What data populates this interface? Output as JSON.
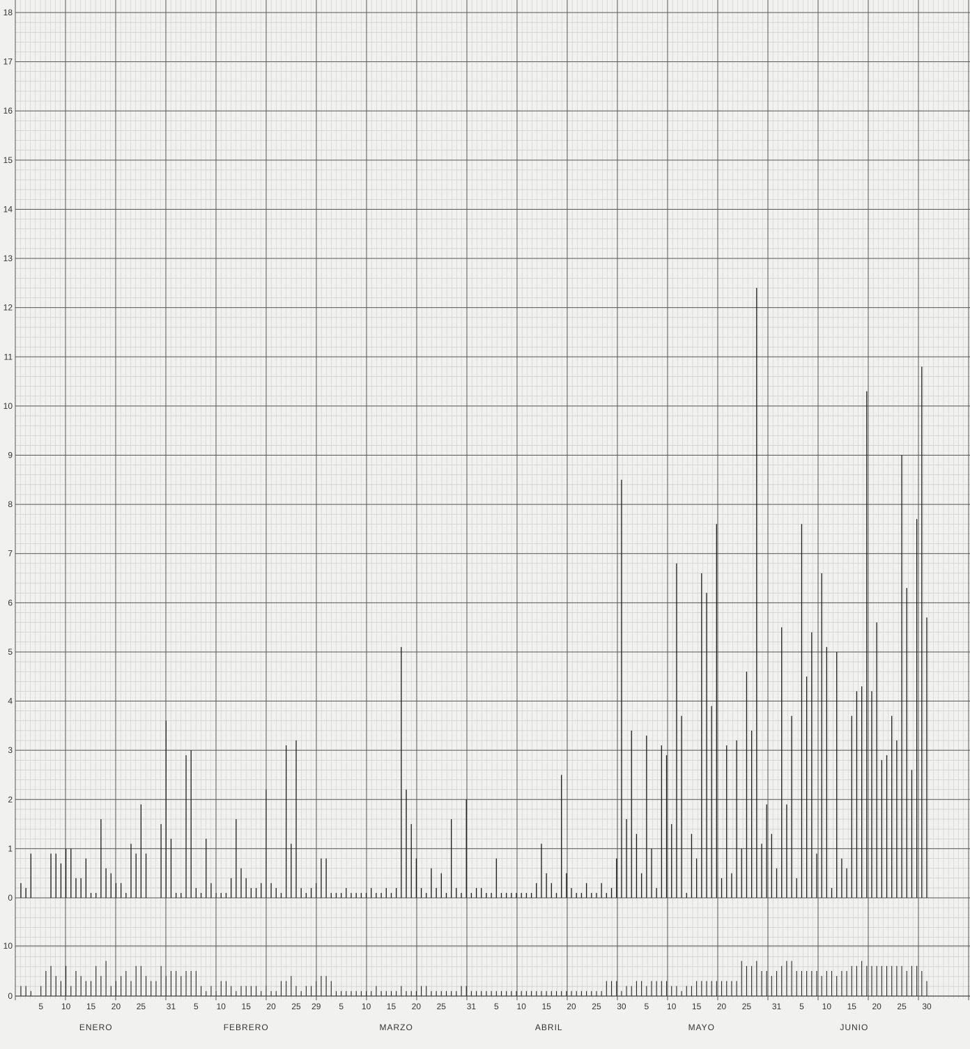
{
  "chart_data": {
    "type": "bar",
    "title": "",
    "xlabel": "",
    "ylabel": "",
    "grid": true,
    "upper_panel": {
      "ylim": [
        -0.2,
        18
      ],
      "ytick_labels": [
        "0",
        "1",
        "2",
        "3",
        "4",
        "5",
        "6",
        "7",
        "8",
        "9",
        "10",
        "11",
        "12",
        "13",
        "14",
        "15",
        "16",
        "17",
        "18"
      ]
    },
    "lower_panel": {
      "ylim": [
        0,
        10
      ],
      "ytick_labels": [
        "0",
        "10"
      ]
    },
    "months": [
      "ENERO",
      "FEBRERO",
      "MARZO",
      "ABRIL",
      "MAYO",
      "JUNIO"
    ],
    "month_days": [
      31,
      29,
      31,
      30,
      31,
      30
    ],
    "day_ticks": [
      [
        "5",
        "10",
        "15",
        "20",
        "25",
        "31"
      ],
      [
        "5",
        "10",
        "15",
        "20",
        "25",
        "29"
      ],
      [
        "5",
        "10",
        "15",
        "20",
        "25",
        "31"
      ],
      [
        "5",
        "10",
        "15",
        "20",
        "25",
        "30"
      ],
      [
        "5",
        "10",
        "15",
        "20",
        "25",
        "31"
      ],
      [
        "5",
        "10",
        "15",
        "20",
        "25",
        "30"
      ]
    ],
    "series": [
      {
        "values": [
          0.3,
          0.2,
          0.9,
          0,
          0,
          0,
          0.9,
          0.9,
          0.7,
          1,
          1,
          0.4,
          0.4,
          0.8,
          0.1,
          0.1,
          1.6,
          0.6,
          0.5,
          0.3,
          0.3,
          0.1,
          1.1,
          0.9,
          1.9,
          0.9,
          0,
          0,
          1.5,
          3.6,
          1.2,
          0.1,
          0.1,
          2.9,
          3.0,
          0.2,
          0.1,
          1.2,
          0.3,
          0.1,
          0.1,
          0.1,
          0.4,
          1.6,
          0.6,
          0.4,
          0.2,
          0.2,
          0.3,
          2.2,
          0.3,
          0.2,
          0.1,
          3.1,
          1.1,
          3.2,
          0.2,
          0.1,
          0.2,
          0.3,
          0.8,
          0.8,
          0.1,
          0.1,
          0.1,
          0.2,
          0.1,
          0.1,
          0.1,
          0.1,
          0.2,
          0.1,
          0.1,
          0.2,
          0.1,
          0.2,
          5.1,
          2.2,
          1.5,
          0.8,
          0.2,
          0.1,
          0.6,
          0.2,
          0.5,
          0.1,
          1.6,
          0.2,
          0.1,
          2.0,
          0.1,
          0.2,
          0.2,
          0.1,
          0.1,
          0.8,
          0.1,
          0.1,
          0.1,
          0.1,
          0.1,
          0.1,
          0.1,
          0.3,
          1.1,
          0.5,
          0.3,
          0.1,
          2.5,
          0.5,
          0.2,
          0.1,
          0.1,
          0.3,
          0.1,
          0.1,
          0.3,
          0.1,
          0.2,
          0.8,
          8.5,
          1.6,
          3.4,
          1.3,
          0.5,
          3.3,
          1.0,
          0.2,
          3.1,
          2.9,
          1.5,
          6.8,
          3.7,
          0.1,
          1.3,
          0.8,
          6.6,
          6.2,
          3.9,
          7.6,
          0.4,
          3.1,
          0.5,
          3.2,
          1.0,
          4.6,
          3.4,
          12.4,
          1.1,
          1.9,
          1.3,
          0.6,
          5.5,
          1.9,
          3.7,
          0.4,
          7.6,
          4.5,
          5.4,
          0.9,
          6.6,
          5.1,
          0.2,
          5.0,
          0.8,
          0.6,
          3.7,
          4.2,
          4.3,
          10.3,
          4.2,
          5.6,
          2.8,
          2.9,
          3.7,
          3.2,
          9.0,
          6.3,
          2.6,
          7.7,
          10.8,
          5.7
        ]
      },
      {
        "values": [
          2,
          2,
          1,
          0,
          2,
          5,
          6,
          4,
          3,
          6,
          2,
          5,
          4,
          3,
          3,
          6,
          4,
          7,
          2,
          3,
          4,
          5,
          3,
          6,
          6,
          4,
          3,
          3,
          6,
          4,
          5,
          5,
          4,
          5,
          5,
          5,
          2,
          1,
          2,
          1,
          3,
          3,
          2,
          1,
          2,
          2,
          2,
          2,
          1,
          2,
          1,
          1,
          3,
          3,
          4,
          2,
          1,
          2,
          2,
          3,
          4,
          4,
          3,
          1,
          1,
          1,
          1,
          1,
          1,
          1,
          1,
          2,
          1,
          1,
          1,
          1,
          2,
          1,
          1,
          1,
          2,
          2,
          1,
          1,
          1,
          1,
          1,
          1,
          2,
          2,
          1,
          1,
          1,
          1,
          1,
          1,
          1,
          1,
          1,
          1,
          1,
          1,
          1,
          1,
          1,
          1,
          1,
          1,
          1,
          1,
          1,
          1,
          1,
          1,
          1,
          1,
          1,
          3,
          3,
          3,
          1,
          2,
          2,
          3,
          3,
          2,
          3,
          3,
          3,
          3,
          2,
          2,
          1,
          2,
          2,
          3,
          3,
          3,
          3,
          3,
          3,
          3,
          3,
          3,
          7,
          6,
          6,
          7,
          5,
          5,
          4,
          5,
          6,
          7,
          7,
          5,
          5,
          5,
          5,
          5,
          4,
          5,
          5,
          4,
          5,
          5,
          6,
          6,
          7,
          6,
          6,
          6,
          6,
          6,
          6,
          6,
          6,
          5,
          6,
          6,
          5,
          3
        ]
      }
    ]
  }
}
